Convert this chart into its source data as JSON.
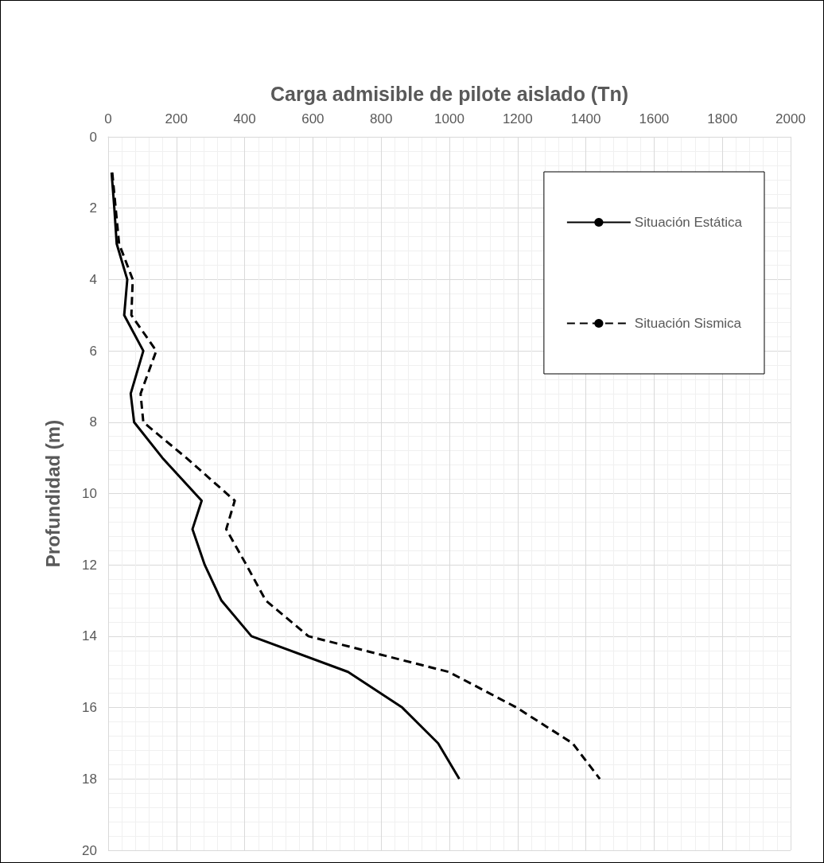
{
  "chart_data": {
    "type": "line",
    "xlabel": "Carga admisible de pilote aislado (Tn)",
    "ylabel": "Profundidad (m)",
    "xlim": [
      0,
      2000
    ],
    "xticks": [
      0,
      200,
      400,
      600,
      800,
      1000,
      1200,
      1400,
      1600,
      1800,
      2000
    ],
    "ylim": [
      20,
      0
    ],
    "yticks": [
      0,
      2,
      4,
      6,
      8,
      10,
      12,
      14,
      16,
      18,
      20
    ],
    "grid": true,
    "legend": "top right",
    "marker": "none",
    "series": [
      {
        "name": "Situación Estática",
        "color": "#000000",
        "line_style": "solid",
        "x": [
          10,
          18,
          25,
          56,
          47,
          103,
          66,
          76,
          159,
          274,
          247,
          283,
          332,
          420,
          703,
          862,
          967,
          1029
        ],
        "values": [
          1,
          2,
          3,
          4,
          5,
          6,
          7.2,
          8,
          9,
          10.2,
          11,
          12,
          13,
          14,
          15,
          16,
          17,
          18
        ]
      },
      {
        "name": "Situación Sismica",
        "color": "#000000",
        "line_style": "dashed",
        "x": [
          12,
          22,
          32,
          72,
          68,
          141,
          95,
          103,
          229,
          371,
          346,
          405,
          462,
          587,
          998,
          1197,
          1361,
          1441
        ],
        "values": [
          1,
          2,
          3,
          4,
          5,
          6,
          7.2,
          8,
          9,
          10.2,
          11,
          12,
          13,
          14,
          15,
          16,
          17,
          18
        ]
      }
    ]
  }
}
